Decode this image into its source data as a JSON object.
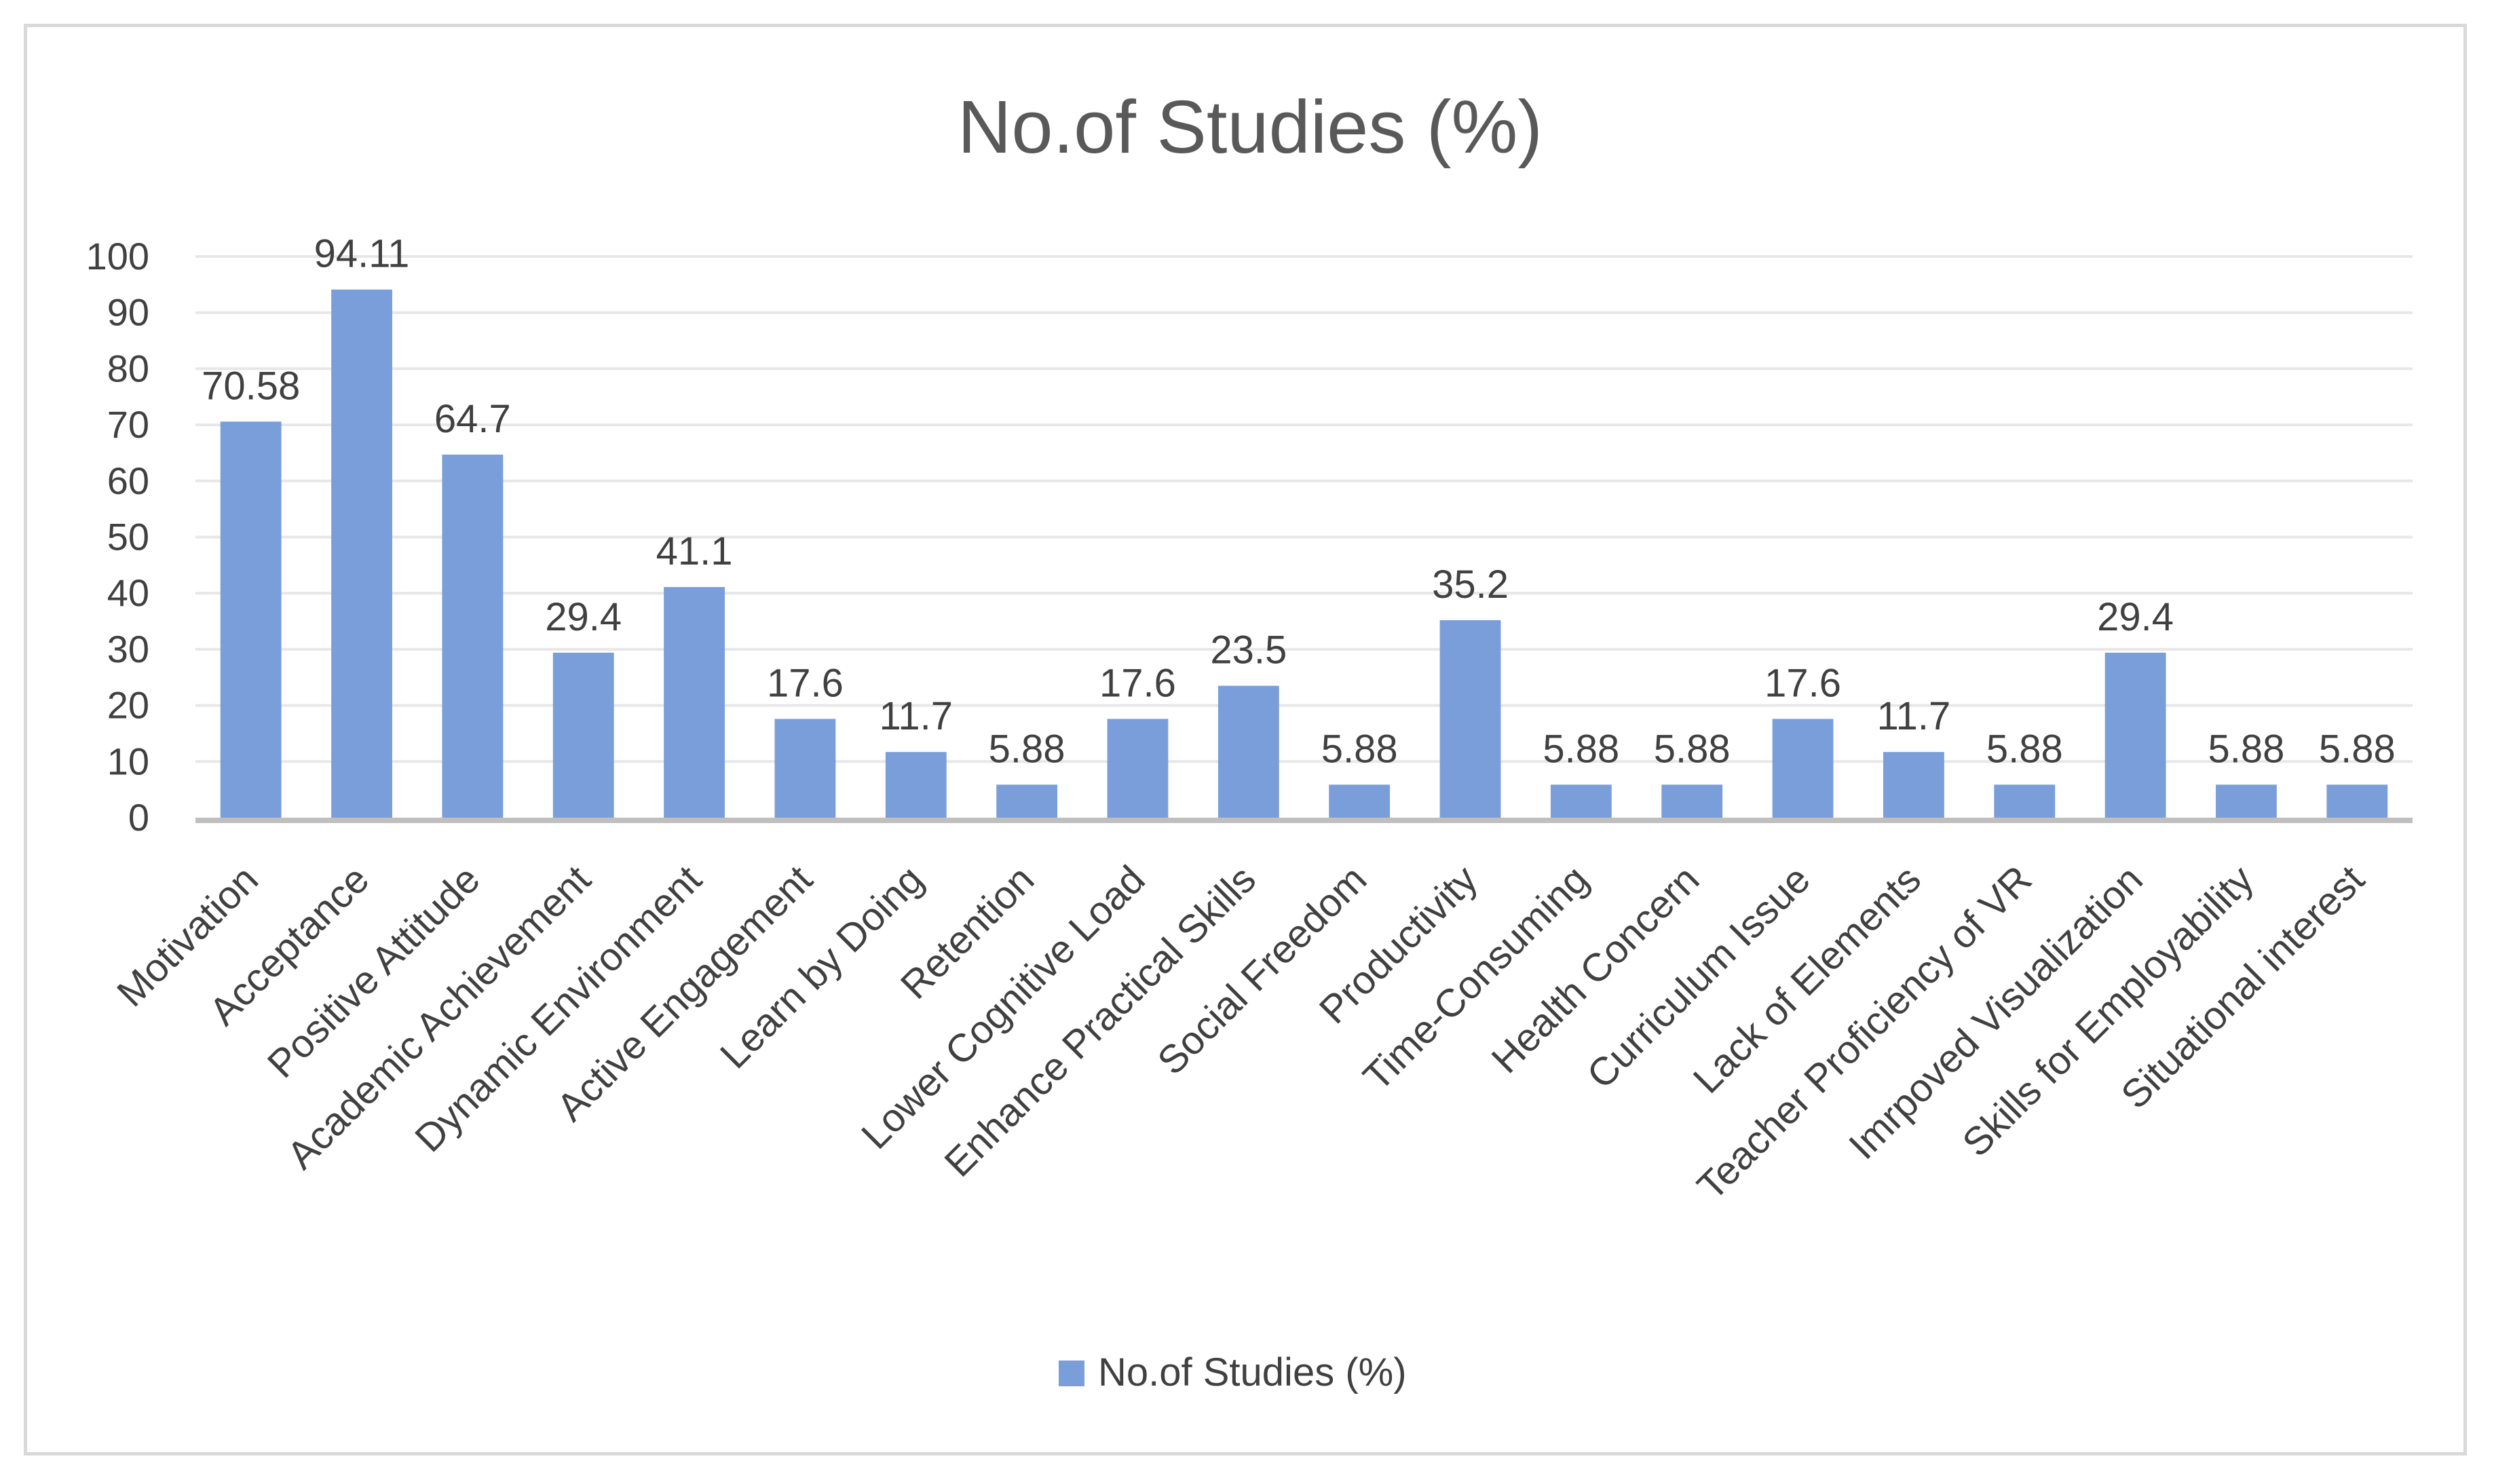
{
  "chart_data": {
    "type": "bar",
    "title": "No.of Studies (%)",
    "xlabel": "",
    "ylabel": "",
    "ylim": [
      0,
      100
    ],
    "yticks": [
      0,
      10,
      20,
      30,
      40,
      50,
      60,
      70,
      80,
      90,
      100
    ],
    "grid": true,
    "legend_position": "bottom",
    "color": "#7a9ed9",
    "categories": [
      "Motivation",
      "Acceptance",
      "Positive Attitude",
      "Academic Achievement",
      "Dynamic Environment",
      "Active Engagement",
      "Learn by Doing",
      "Retention",
      "Lower Cognitive Load",
      "Enhance Practical Skills",
      "Social Freedom",
      "Productivity",
      "Time-Consuming",
      "Health Concern",
      "Curriculum Issue",
      "Lack of Elements",
      "Teacher Proficiency of VR",
      "Imrpoved Visualization",
      "Skills for Employability",
      "Situational interest"
    ],
    "series": [
      {
        "name": "No.of Studies (%)",
        "values": [
          70.58,
          94.11,
          64.7,
          29.4,
          41.1,
          17.6,
          11.7,
          5.88,
          17.6,
          23.5,
          5.88,
          35.2,
          5.88,
          5.88,
          17.6,
          11.7,
          5.88,
          29.4,
          5.88,
          5.88
        ],
        "labels": [
          "70.58",
          "94.11",
          "64.7",
          "29.4",
          "41.1",
          "17.6",
          "11.7",
          "5.88",
          "17.6",
          "23.5",
          "5.88",
          "35.2",
          "5.88",
          "5.88",
          "17.6",
          "11.7",
          "5.88",
          "29.4",
          "5.88",
          "5.88"
        ]
      }
    ]
  }
}
